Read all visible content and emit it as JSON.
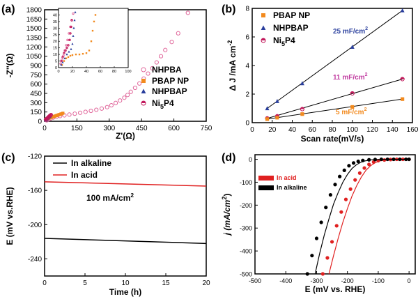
{
  "colors": {
    "nhpba": "#e0669a",
    "pbap": "#f28a1e",
    "nhpbap": "#2a3f9d",
    "ni5p4": "#c2185b",
    "acid": "#e02020",
    "alkaline": "#000000",
    "label11": "#c13ba0",
    "label5": "#f28a1e",
    "label25": "#2a3f9d"
  },
  "chart_data": [
    {
      "id": "a",
      "type": "scatter",
      "panel_label": "(a)",
      "xlabel": "Z'(Ω)",
      "ylabel": "-Z''(Ω)",
      "xlim": [
        0,
        750
      ],
      "ylim": [
        0,
        1800
      ],
      "xticks": [
        "0",
        "150",
        "300",
        "450",
        "600",
        "750"
      ],
      "yticks": [
        "0",
        "150",
        "300",
        "450",
        "600",
        "750",
        "900",
        "1050",
        "1200",
        "1350",
        "1500",
        "1650",
        "1800"
      ],
      "legend": [
        "NHPBA",
        "PBAP NP",
        "NHPBAP",
        "Ni5P4"
      ],
      "series": [
        {
          "name": "NHPBA",
          "marker": "open-circle",
          "x": [
            10,
            18,
            28,
            40,
            55,
            72,
            92,
            115,
            140,
            165,
            190,
            215,
            240,
            265,
            290,
            310,
            330,
            350,
            370,
            385,
            400,
            420,
            440,
            460,
            480,
            500,
            520,
            540,
            560,
            590,
            620,
            665
          ],
          "y": [
            15,
            30,
            45,
            60,
            72,
            84,
            96,
            108,
            122,
            137,
            152,
            168,
            185,
            205,
            228,
            258,
            295,
            335,
            380,
            425,
            475,
            540,
            610,
            690,
            770,
            855,
            950,
            1050,
            1150,
            1280,
            1420,
            1750
          ]
        },
        {
          "name": "PBAP NP",
          "marker": "square",
          "x": [
            5,
            10,
            15,
            20,
            25,
            30,
            35,
            40,
            45,
            50,
            55,
            60,
            65,
            70,
            75,
            80,
            85
          ],
          "y": [
            30,
            38,
            44,
            50,
            56,
            62,
            68,
            74,
            80,
            86,
            92,
            98,
            104,
            110,
            116,
            122,
            130
          ]
        },
        {
          "name": "NHPBAP",
          "marker": "triangle",
          "x": [
            5,
            8,
            11,
            14,
            17,
            20,
            23,
            26
          ],
          "y": [
            20,
            30,
            40,
            50,
            60,
            70,
            80,
            90
          ]
        },
        {
          "name": "Ni5P4",
          "marker": "half-circle",
          "x": [
            5,
            8,
            11,
            14,
            17,
            20,
            23,
            26,
            30
          ],
          "y": [
            25,
            35,
            45,
            55,
            65,
            75,
            85,
            95,
            105
          ]
        }
      ],
      "inset": {
        "xlim": [
          0,
          100
        ],
        "ylim": [
          0,
          45
        ],
        "xticks": [
          "0",
          "20",
          "40",
          "60",
          "80",
          "100"
        ],
        "yticks": [
          "0",
          "5",
          "10",
          "15",
          "20",
          "25",
          "30",
          "35",
          "40"
        ]
      }
    },
    {
      "id": "b",
      "type": "line",
      "panel_label": "(b)",
      "xlabel": "Scan rate(mV/s)",
      "ylabel": "Δ J /mA cm-2",
      "xlim": [
        0,
        160
      ],
      "ylim": [
        0,
        8
      ],
      "xticks": [
        "0",
        "20",
        "40",
        "60",
        "80",
        "100",
        "120",
        "140",
        "160"
      ],
      "yticks": [
        "0",
        "2",
        "4",
        "6",
        "8"
      ],
      "legend": [
        "PBAP NP",
        "NHPBAP",
        "Ni5P4"
      ],
      "annotations": [
        "25 mF/cm2",
        "11 mF/cm2",
        "5 mF/cm2"
      ],
      "x": [
        15,
        25,
        50,
        100,
        150
      ],
      "series": [
        {
          "name": "NHPBAP",
          "marker": "triangle",
          "values": [
            1.0,
            1.5,
            2.75,
            5.3,
            7.85
          ]
        },
        {
          "name": "Ni5P4",
          "marker": "half-circle",
          "values": [
            0.3,
            0.45,
            0.95,
            2.05,
            3.05
          ]
        },
        {
          "name": "PBAP NP",
          "marker": "square",
          "values": [
            0.25,
            0.35,
            0.6,
            1.1,
            1.65
          ]
        }
      ]
    },
    {
      "id": "c",
      "type": "line",
      "panel_label": "(c)",
      "xlabel": "Time (h)",
      "ylabel": "E (mV vs.RHE)",
      "xlim": [
        0,
        20
      ],
      "ylim": [
        -260,
        -120
      ],
      "xticks": [
        "0",
        "5",
        "10",
        "15",
        "20"
      ],
      "yticks": [
        "-240",
        "-200",
        "-160",
        "-120"
      ],
      "legend": [
        "In alkaline",
        "In acid"
      ],
      "annotation": "100 mA/cm2",
      "series": [
        {
          "name": "In alkaline",
          "x": [
            0,
            20
          ],
          "values": [
            -216,
            -222
          ]
        },
        {
          "name": "In acid",
          "x": [
            0,
            20
          ],
          "values": [
            -150,
            -155
          ]
        }
      ]
    },
    {
      "id": "d",
      "type": "line",
      "panel_label": "(d)",
      "xlabel": "E (mV vs. RHE)",
      "ylabel": "j (mA/cm2)",
      "xlim": [
        -500,
        20
      ],
      "ylim": [
        -500,
        20
      ],
      "xticks": [
        "-500",
        "-400",
        "-300",
        "-200",
        "-100",
        "0"
      ],
      "yticks": [
        "-500",
        "-400",
        "-300",
        "-200",
        "-100",
        "0"
      ],
      "legend": [
        "In acid",
        "In alkaline"
      ],
      "series": [
        {
          "name": "In acid (dots)",
          "x": [
            -280,
            -265,
            -250,
            -235,
            -220,
            -205,
            -190,
            -175,
            -160,
            -145,
            -130,
            -115,
            -100,
            -80,
            -60,
            -40,
            -20,
            0
          ],
          "values": [
            -500,
            -430,
            -360,
            -290,
            -230,
            -175,
            -130,
            -90,
            -60,
            -38,
            -22,
            -12,
            -6,
            -3,
            -1,
            0,
            0,
            0
          ]
        },
        {
          "name": "In acid (line)",
          "x": [
            -260,
            -245,
            -230,
            -215,
            -200,
            -185,
            -170,
            -155,
            -140,
            -125,
            -110,
            -95,
            -80,
            -60,
            -40,
            -20,
            0
          ],
          "values": [
            -500,
            -420,
            -345,
            -275,
            -215,
            -160,
            -115,
            -78,
            -48,
            -28,
            -15,
            -7,
            -3,
            -1,
            0,
            0,
            0
          ]
        },
        {
          "name": "In alkaline (dots)",
          "x": [
            -330,
            -315,
            -300,
            -285,
            -270,
            -255,
            -240,
            -225,
            -210,
            -195,
            -180,
            -165,
            -150,
            -130,
            -110,
            -90,
            -70,
            -50,
            -30,
            -10,
            0
          ],
          "values": [
            -500,
            -420,
            -345,
            -275,
            -210,
            -155,
            -110,
            -75,
            -48,
            -28,
            -16,
            -9,
            -5,
            -2,
            -1,
            0,
            0,
            0,
            0,
            0,
            0
          ]
        },
        {
          "name": "In alkaline (line)",
          "x": [
            -305,
            -290,
            -275,
            -260,
            -245,
            -230,
            -215,
            -200,
            -185,
            -170,
            -155,
            -140,
            -120,
            -100,
            -80,
            -60,
            -40,
            -20,
            0
          ],
          "values": [
            -500,
            -410,
            -330,
            -260,
            -195,
            -145,
            -100,
            -66,
            -40,
            -23,
            -12,
            -6,
            -2,
            -1,
            0,
            0,
            0,
            0,
            0
          ]
        }
      ]
    }
  ]
}
